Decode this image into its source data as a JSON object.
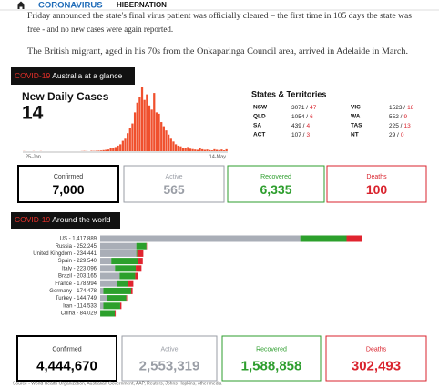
{
  "nav": {
    "section": "CORONAVIRUS",
    "link": "HIBERNATION"
  },
  "article": {
    "lines": [
      "Friday announced the state's final virus patient was officially cleared – the first time in 105 days the state was",
      "free - and no new cases were again reported.",
      "The British migrant, aged in his 70s from the Onkaparinga Council area, arrived in Adelaide in March."
    ]
  },
  "australia": {
    "tag": "COVID-19",
    "label": "Australia at a glance",
    "chart_title": "New Daily Cases",
    "today": "14",
    "chart": {
      "type": "bar",
      "x_start": "25-Jan",
      "x_end": "14-May",
      "color": "#f0502d",
      "values": [
        1,
        0,
        0,
        0,
        1,
        0,
        0,
        1,
        0,
        0,
        0,
        0,
        0,
        0,
        0,
        0,
        0,
        0,
        0,
        0,
        0,
        0,
        0,
        0,
        1,
        2,
        1,
        0,
        3,
        2,
        3,
        4,
        5,
        8,
        10,
        12,
        20,
        25,
        30,
        40,
        50,
        75,
        90,
        130,
        170,
        200,
        280,
        350,
        390,
        460,
        370,
        410,
        330,
        300,
        420,
        280,
        270,
        210,
        180,
        150,
        120,
        90,
        70,
        50,
        40,
        35,
        25,
        20,
        30,
        18,
        15,
        12,
        10,
        20,
        14,
        10,
        12,
        8,
        6,
        14,
        10,
        8,
        12,
        6,
        14
      ]
    },
    "states_title": "States & Territories",
    "states": [
      {
        "name": "NSW",
        "cases": "3071 /",
        "new": "47"
      },
      {
        "name": "VIC",
        "cases": "1523 /",
        "new": "18"
      },
      {
        "name": "QLD",
        "cases": "1054 /",
        "new": "6"
      },
      {
        "name": "WA",
        "cases": "552 /",
        "new": "9"
      },
      {
        "name": "SA",
        "cases": "439 /",
        "new": "4"
      },
      {
        "name": "TAS",
        "cases": "225 /",
        "new": "13"
      },
      {
        "name": "ACT",
        "cases": "107 /",
        "new": "3"
      },
      {
        "name": "NT",
        "cases": "29 /",
        "new": "0"
      }
    ],
    "stats": [
      {
        "label": "Confirmed",
        "value": "7,000",
        "color": "#000000"
      },
      {
        "label": "Active",
        "value": "565",
        "color": "#9a9ea6"
      },
      {
        "label": "Recovered",
        "value": "6,335",
        "color": "#2e9e2e"
      },
      {
        "label": "Deaths",
        "value": "100",
        "color": "#d9232d"
      }
    ]
  },
  "world": {
    "tag": "COVID-19",
    "label": "Around the world",
    "chart": {
      "type": "bar",
      "orientation": "horizontal",
      "stacked": true,
      "segment_colors": [
        "#a9aeb7",
        "#2ca02c",
        "#e0242f"
      ],
      "countries": [
        {
          "label": "US - 1,417,889",
          "values": [
            1080000,
            250000,
            86000
          ]
        },
        {
          "label": "Russia - 252,245",
          "values": [
            195000,
            55000,
            2300
          ]
        },
        {
          "label": "United Kingdom - 234,441",
          "values": [
            195000,
            5000,
            33000
          ]
        },
        {
          "label": "Spain - 229,540",
          "values": [
            60000,
            143000,
            27000
          ]
        },
        {
          "label": "Italy - 223,096",
          "values": [
            80000,
            112000,
            31000
          ]
        },
        {
          "label": "Brazil - 203,165",
          "values": [
            105000,
            84000,
            14000
          ]
        },
        {
          "label": "France - 178,994",
          "values": [
            90000,
            62000,
            27000
          ]
        },
        {
          "label": "Germany - 174,478",
          "values": [
            17000,
            150000,
            8000
          ]
        },
        {
          "label": "Turkey - 144,749",
          "values": [
            37000,
            104000,
            4000
          ]
        },
        {
          "label": "Iran - 114,533",
          "values": [
            17000,
            91000,
            7000
          ]
        },
        {
          "label": "China - 84,029",
          "values": [
            300,
            79000,
            4600
          ]
        }
      ]
    },
    "stats": [
      {
        "label": "Confirmed",
        "value": "4,444,670",
        "color": "#000000"
      },
      {
        "label": "Active",
        "value": "2,553,319",
        "color": "#9a9ea6"
      },
      {
        "label": "Recovered",
        "value": "1,588,858",
        "color": "#2e9e2e"
      },
      {
        "label": "Deaths",
        "value": "302,493",
        "color": "#d9232d"
      }
    ]
  },
  "source": "Source - World Health Organization, Australian Government, AAP, Reuters, Johns Hopkins, other media"
}
